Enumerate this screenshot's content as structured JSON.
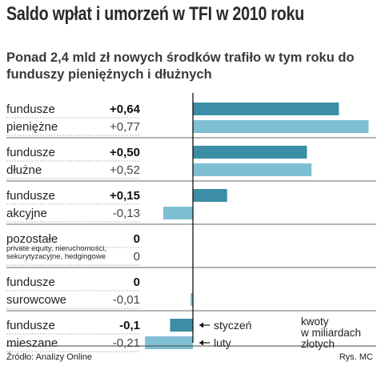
{
  "header": {
    "title": "Saldo wpłat i umorzeń w TFI w 2010 roku",
    "subtitle": "Ponad 2,4 mld zł nowych środków trafiło w tym roku do funduszy pieniężnych i dłużnych"
  },
  "footer": {
    "source": "Źródło: Analizy Online",
    "credit": "Rys. MC"
  },
  "legend": {
    "items": [
      {
        "label": "styczeń",
        "color": "#3b8ea5"
      },
      {
        "label": "luty",
        "color": "#7fbfd4"
      }
    ],
    "unit_note": [
      "kwoty",
      "w miliardach",
      "złotych"
    ]
  },
  "colors": {
    "jan": "#3b8ea5",
    "feb": "#7fbfd4",
    "rule": "#8a8a8a",
    "axis": "#000000"
  },
  "chart_data": {
    "type": "bar",
    "orientation": "horizontal",
    "unit": "mld zł",
    "xlim": [
      -0.21,
      0.77
    ],
    "grid": false,
    "legend_position": "bottom-right",
    "categories": [
      {
        "line1": "fundusze",
        "line2": "pieniężne",
        "small": [],
        "jan": 0.64,
        "feb": 0.77,
        "jan_label": "+0,64",
        "feb_label": "+0,77"
      },
      {
        "line1": "fundusze",
        "line2": "dłużne",
        "small": [],
        "jan": 0.5,
        "feb": 0.52,
        "jan_label": "+0,50",
        "feb_label": "+0,52"
      },
      {
        "line1": "fundusze",
        "line2": "akcyjne",
        "small": [],
        "jan": 0.15,
        "feb": -0.13,
        "jan_label": "+0,15",
        "feb_label": "-0,13"
      },
      {
        "line1": "pozostałe",
        "line2": "",
        "small": [
          "private equity, nieruchomości,",
          "sekurytyzacyjne, hedgingowe"
        ],
        "jan": 0,
        "feb": 0,
        "jan_label": "0",
        "feb_label": "0"
      },
      {
        "line1": "fundusze",
        "line2": "surowcowe",
        "small": [],
        "jan": 0,
        "feb": -0.01,
        "jan_label": "0",
        "feb_label": "-0,01"
      },
      {
        "line1": "fundusze",
        "line2": "mieszane",
        "small": [],
        "jan": -0.1,
        "feb": -0.21,
        "jan_label": "-0,1",
        "feb_label": "-0,21"
      }
    ],
    "series": [
      {
        "name": "styczeń",
        "values": [
          0.64,
          0.5,
          0.15,
          0,
          0,
          -0.1
        ]
      },
      {
        "name": "luty",
        "values": [
          0.77,
          0.52,
          -0.13,
          0,
          -0.01,
          -0.21
        ]
      }
    ]
  }
}
